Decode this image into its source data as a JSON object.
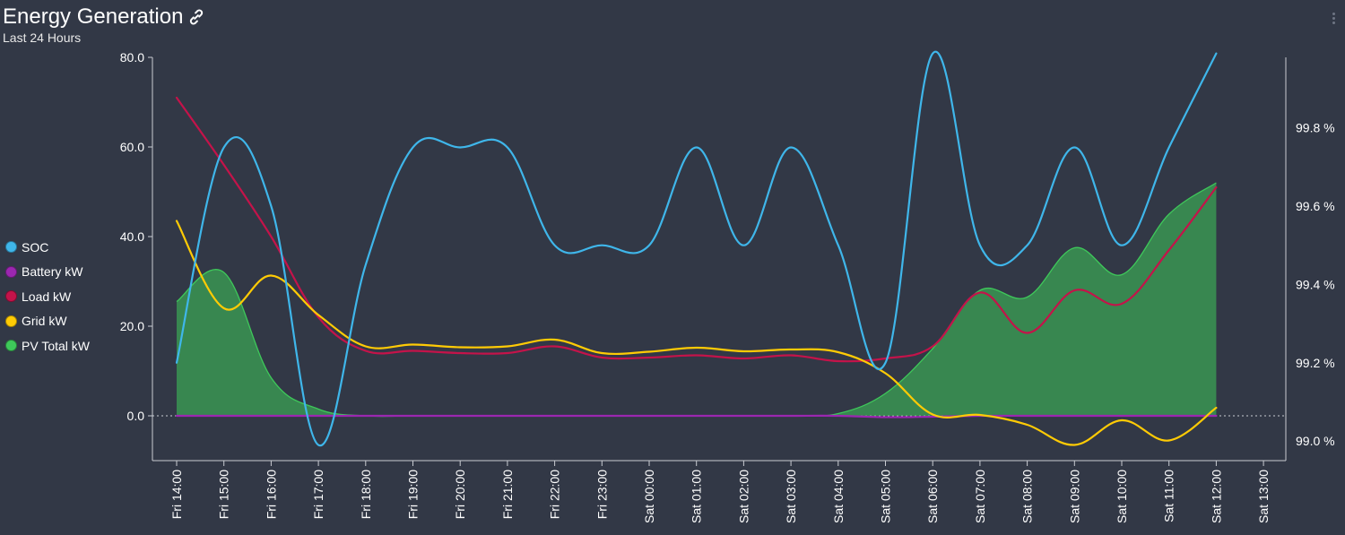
{
  "header": {
    "title": "Energy Generation",
    "subtitle": "Last 24 Hours",
    "link_icon": "link-icon",
    "menu_icon": "kebab-menu-icon"
  },
  "colors": {
    "background": "#323846",
    "axis": "#c9ccd3",
    "zero_line": "#c9ccd3"
  },
  "legend": [
    {
      "label": "SOC",
      "color": "#3fb6ea"
    },
    {
      "label": "Battery kW",
      "color": "#9b27b0"
    },
    {
      "label": "Load kW",
      "color": "#c4134a"
    },
    {
      "label": "Grid kW",
      "color": "#ffcb05"
    },
    {
      "label": "PV Total kW",
      "color": "#3ec85a"
    }
  ],
  "chart_data": {
    "type": "line",
    "x": [
      "Fri 14:00",
      "Fri 15:00",
      "Fri 16:00",
      "Fri 17:00",
      "Fri 18:00",
      "Fri 19:00",
      "Fri 20:00",
      "Fri 21:00",
      "Fri 22:00",
      "Fri 23:00",
      "Sat 00:00",
      "Sat 01:00",
      "Sat 02:00",
      "Sat 03:00",
      "Sat 04:00",
      "Sat 05:00",
      "Sat 06:00",
      "Sat 07:00",
      "Sat 08:00",
      "Sat 09:00",
      "Sat 10:00",
      "Sat 11:00",
      "Sat 12:00",
      "Sat 13:00"
    ],
    "y_left": {
      "ticks": [
        "0.0",
        "20.0",
        "40.0",
        "60.0",
        "80.0"
      ],
      "ylim": [
        -10,
        80
      ],
      "zero_line": "dotted"
    },
    "y_right": {
      "ticks": [
        "99.0 %",
        "99.2 %",
        "99.4 %",
        "99.6 %",
        "99.8 %"
      ],
      "ylim": [
        98.95,
        99.98
      ]
    },
    "grid": false,
    "legend_position": "left",
    "series": [
      {
        "name": "SOC",
        "axis": "right",
        "color": "#3fb6ea",
        "kind": "line",
        "values": [
          99.2,
          99.75,
          99.6,
          98.99,
          99.45,
          99.75,
          99.75,
          99.75,
          99.5,
          99.5,
          99.5,
          99.75,
          99.5,
          99.75,
          99.5,
          99.2,
          99.99,
          99.5,
          99.5,
          99.75,
          99.5,
          99.75,
          99.99,
          null
        ]
      },
      {
        "name": "Battery kW",
        "axis": "left",
        "color": "#9b27b0",
        "kind": "line",
        "values": [
          0,
          0,
          0,
          0,
          0,
          0,
          0,
          0,
          0,
          0,
          0,
          0,
          0,
          0,
          0,
          -0.3,
          -0.2,
          0,
          0,
          0,
          0,
          0,
          0,
          null
        ]
      },
      {
        "name": "Load kW",
        "axis": "left",
        "color": "#c4134a",
        "kind": "line",
        "values": [
          71,
          56,
          40,
          22,
          14.5,
          14.5,
          14,
          14,
          15.5,
          13,
          13,
          13.5,
          12.8,
          13.5,
          12.2,
          12.8,
          15.5,
          27.5,
          18.5,
          28,
          25,
          37,
          51,
          null
        ]
      },
      {
        "name": "Grid kW",
        "axis": "left",
        "color": "#ffcb05",
        "kind": "line",
        "values": [
          43.5,
          24,
          31.3,
          22.5,
          15.5,
          15.9,
          15.3,
          15.5,
          17,
          14,
          14.3,
          15.2,
          14.4,
          14.8,
          14.2,
          9.5,
          0.3,
          0.2,
          -2,
          -6.5,
          -1,
          -5.5,
          1.8,
          null
        ]
      },
      {
        "name": "PV Total kW",
        "axis": "left",
        "color": "#3ec85a",
        "kind": "area",
        "values": [
          25.5,
          32,
          8.5,
          1.5,
          0,
          0,
          0,
          0,
          0,
          0,
          0,
          0,
          0,
          0,
          0.5,
          5,
          15,
          28,
          26.5,
          37.5,
          31.5,
          45,
          52,
          null
        ]
      }
    ]
  }
}
